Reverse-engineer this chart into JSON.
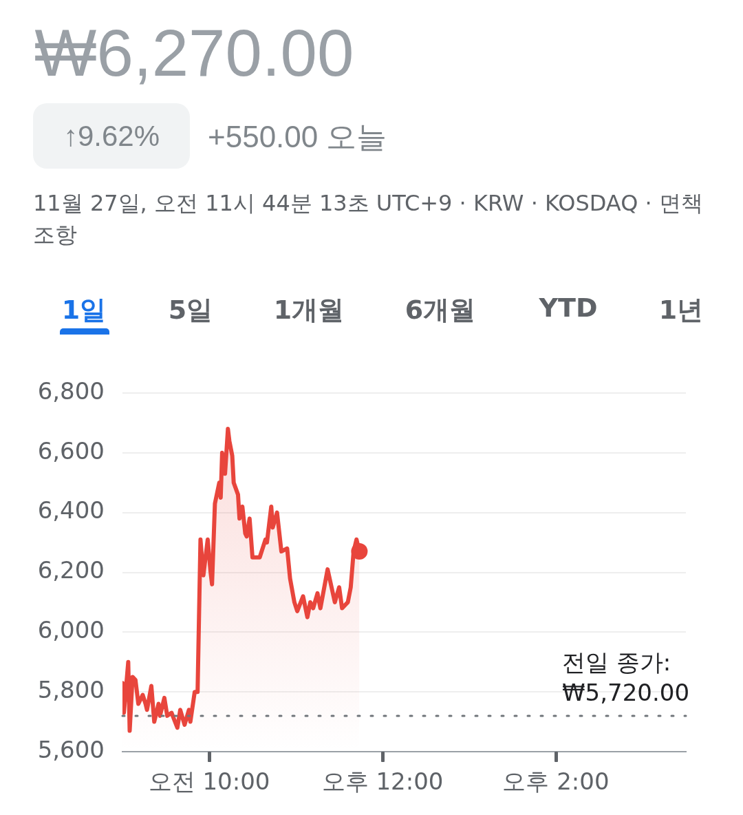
{
  "chart_data": {
    "type": "area",
    "title": "₩6,270.00",
    "subtitle": "+550.00 오늘",
    "annotations": [
      "↑9.62%",
      "11월 27일, 오전 11시 44분 13초 UTC+9 · KRW · KOSDAQ · 면책조항",
      "1일",
      "5일",
      "1개월",
      "6개월",
      "YTD",
      "1년"
    ],
    "x": [
      "--11-27T09:00",
      "--11-27T09:01",
      "--11-27T09:04",
      "--11-27T09:05",
      "--11-27T09:07",
      "--11-27T09:09",
      "--11-27T09:11",
      "--11-27T09:14",
      "--11-27T09:16",
      "--11-27T09:17",
      "--11-27T09:20",
      "--11-27T09:22",
      "--11-27T09:25",
      "--11-27T09:26",
      "--11-27T09:29",
      "--11-27T09:31",
      "--11-27T09:34",
      "--11-27T09:38",
      "--11-27T09:40",
      "--11-27T09:43",
      "--11-27T09:46",
      "--11-27T09:47",
      "--11-27T09:50",
      "--11-27T09:52",
      "--11-27T09:54",
      "--11-27T09:56",
      "--11-27T09:59",
      "--11-27T10:01",
      "--11-27T10:02",
      "--11-27T10:04",
      "--11-27T10:07",
      "--11-27T10:08",
      "--11-27T10:09",
      "--11-27T10:11",
      "--11-27T10:13",
      "--11-27T10:14",
      "--11-27T10:16",
      "--11-27T10:17",
      "--11-27T10:20",
      "--11-27T10:21",
      "--11-27T10:23",
      "--11-27T10:25",
      "--11-27T10:26",
      "--11-27T10:28",
      "--11-27T10:30",
      "--11-27T10:35",
      "--11-27T10:39",
      "--11-27T10:40",
      "--11-27T10:43",
      "--11-27T10:44",
      "--11-27T10:47",
      "--11-27T10:50",
      "--11-27T10:54",
      "--11-27T10:56",
      "--11-27T10:59",
      "--11-27T11:01",
      "--11-27T11:05",
      "--11-27T11:08",
      "--11-27T11:10",
      "--11-27T11:12",
      "--11-27T11:15",
      "--11-27T11:17",
      "--11-27T11:22",
      "--11-27T11:27",
      "--11-27T11:30",
      "--11-27T11:32",
      "--11-27T11:36",
      "--11-27T11:38",
      "--11-27T11:40",
      "--11-27T11:42",
      "--11-27T11:44"
    ],
    "series": [
      {
        "color": "#e8453c",
        "values": [
          5830,
          5730,
          5900,
          5670,
          5850,
          5840,
          5760,
          5790,
          5760,
          5740,
          5820,
          5700,
          5760,
          5720,
          5780,
          5720,
          5730,
          5680,
          5740,
          5690,
          5740,
          5700,
          5800,
          5800,
          6310,
          6190,
          6310,
          6200,
          6160,
          6430,
          6500,
          6450,
          6600,
          6530,
          6680,
          6640,
          6590,
          6500,
          6460,
          6380,
          6420,
          6330,
          6320,
          6380,
          6250,
          6250,
          6310,
          6300,
          6420,
          6350,
          6400,
          6270,
          6280,
          6180,
          6100,
          6070,
          6120,
          6050,
          6100,
          6080,
          6130,
          6080,
          6210,
          6100,
          6150,
          6080,
          6100,
          6150,
          6270,
          6310,
          6270
        ]
      }
    ],
    "xlim": [
      "--11-27T09:00",
      "--11-27T15:30"
    ],
    "xticks": [
      {
        "value": "--11-27T10:00",
        "label": "오전 10:00"
      },
      {
        "value": "--11-27T12:00",
        "label": "오후 12:00"
      },
      {
        "value": "--11-27T14:00",
        "label": "오후 2:00"
      }
    ],
    "ylim": [
      5600,
      6800
    ],
    "yticks": [
      {
        "value": 5600,
        "label": "5,600"
      },
      {
        "value": 5800,
        "label": "5,800"
      },
      {
        "value": 6000,
        "label": "6,000"
      },
      {
        "value": 6200,
        "label": "6,200"
      },
      {
        "value": 6400,
        "label": "6,400"
      },
      {
        "value": 6600,
        "label": "6,600"
      },
      {
        "value": 6800,
        "label": "6,800"
      }
    ],
    "grid": "y",
    "legend": false,
    "ref_lines": [
      {
        "axis": "y",
        "value": 5720,
        "label": "전일 종가:\n₩5,720.00",
        "color": "#70757a",
        "line_style": "dotted"
      }
    ]
  }
}
